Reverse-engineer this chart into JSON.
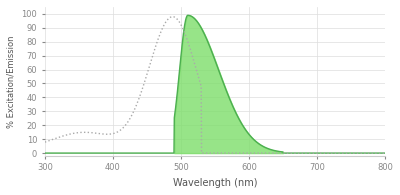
{
  "title": "",
  "xlabel": "Wavelength (nm)",
  "ylabel": "% Excitation/Emission",
  "xlim": [
    300,
    800
  ],
  "ylim": [
    -2,
    105
  ],
  "xticks": [
    300,
    400,
    500,
    600,
    700,
    800
  ],
  "yticks": [
    0,
    10,
    20,
    30,
    40,
    50,
    60,
    70,
    80,
    90,
    100
  ],
  "emission_color_fill": "#7dde6a",
  "emission_color_line": "#4caf50",
  "excitation_color": "#aaaaaa",
  "background_color": "#ffffff",
  "grid_color": "#dddddd",
  "emission_peak": 510,
  "excitation_peak": 490,
  "x_start": 300,
  "x_end": 800
}
